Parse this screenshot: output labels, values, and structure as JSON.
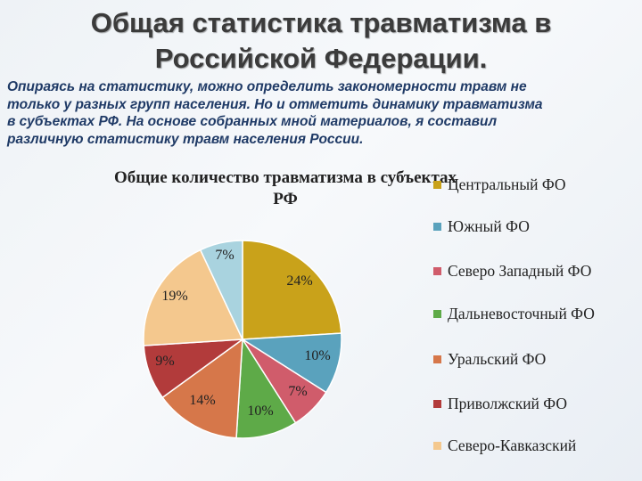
{
  "slide": {
    "title_line1": "Общая статистика травматизма в",
    "title_line2": "Российской Федерации.",
    "intro_line1": "Опираясь на статистику, можно определить закономерности травм не",
    "intro_line2": "только у разных групп населения. Но и отметить динамику травматизма",
    "intro_line3": "в субъектах РФ. На основе собранных мной материалов, я составил",
    "intro_line4": "различную статистику травм населения России."
  },
  "chart_data": {
    "type": "pie",
    "title_line1": "Общие количество травматизма в субъектах",
    "title_line2": "РФ",
    "legend_position": "right",
    "slices": [
      {
        "name": "Центральный ФО",
        "value": 24,
        "label": "24%",
        "color": "#c9a21a"
      },
      {
        "name": "Южный ФО",
        "value": 10,
        "label": "10%",
        "color": "#5aa2bd"
      },
      {
        "name": "Северо Западный ФО",
        "value": 7,
        "label": "7%",
        "color": "#d05c6b"
      },
      {
        "name": "Дальневосточный ФО",
        "value": 10,
        "label": "10%",
        "color": "#5eaa48"
      },
      {
        "name": "Уральский ФО",
        "value": 14,
        "label": "14%",
        "color": "#d6774a"
      },
      {
        "name": "Приволжский ФО",
        "value": 9,
        "label": "9%",
        "color": "#b23b3b"
      },
      {
        "name": "Северо-Кавказский",
        "value": 19,
        "label": "19%",
        "color": "#f4c88e"
      },
      {
        "name": "",
        "value": 7,
        "label": "7%",
        "color": "#a9d3df"
      }
    ]
  }
}
